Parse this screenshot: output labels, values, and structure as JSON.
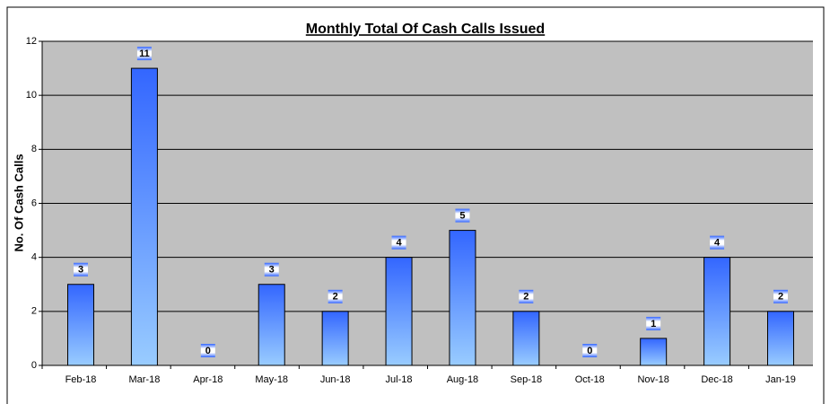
{
  "chart_data": {
    "type": "bar",
    "title": "Monthly Total Of Cash Calls Issued",
    "y_label": "No. Of Cash Calls",
    "categories": [
      "Feb-18",
      "Mar-18",
      "Apr-18",
      "May-18",
      "Jun-18",
      "Jul-18",
      "Aug-18",
      "Sep-18",
      "Oct-18",
      "Nov-18",
      "Dec-18",
      "Jan-19"
    ],
    "values": [
      3,
      11,
      0,
      3,
      2,
      4,
      5,
      2,
      0,
      1,
      4,
      2
    ],
    "color": "#3366ff",
    "ylim": [
      0,
      12
    ],
    "yticks": [
      0,
      2,
      4,
      6,
      8,
      10,
      12
    ],
    "grid": true
  }
}
